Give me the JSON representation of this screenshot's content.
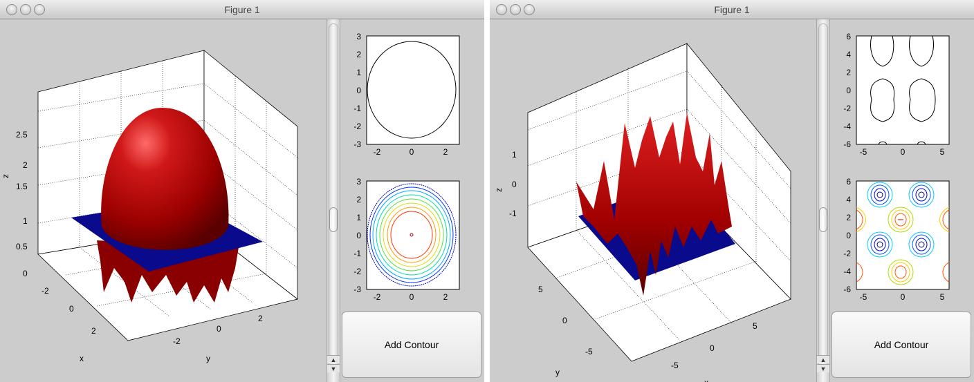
{
  "windows": [
    {
      "title": "Figure 1",
      "button_label": "Add Contour",
      "plot3d": {
        "axis_labels": {
          "x": "x",
          "y": "y",
          "z": "z"
        },
        "z_ticks": [
          "0",
          "0.5",
          "1",
          "1.5",
          "2",
          "2.5"
        ],
        "x_ticks": [
          "-2",
          "0",
          "2"
        ],
        "y_ticks": [
          "-2",
          "0",
          "2"
        ]
      },
      "top_plot": {
        "x_ticks": [
          "-2",
          "0",
          "2"
        ],
        "y_ticks": [
          "3",
          "2",
          "1",
          "0",
          "-1",
          "-2",
          "-3"
        ]
      },
      "bottom_plot": {
        "x_ticks": [
          "-2",
          "0",
          "2"
        ],
        "y_ticks": [
          "3",
          "2",
          "1",
          "0",
          "-1",
          "-2",
          "-3"
        ]
      }
    },
    {
      "title": "Figure 1",
      "button_label": "Add Contour",
      "plot3d": {
        "axis_labels": {
          "x": "x",
          "y": "y",
          "z": "z"
        },
        "z_ticks": [
          "1",
          "0",
          "-1"
        ],
        "x_ticks": [
          "-5",
          "0",
          "5"
        ],
        "y_ticks": [
          "5",
          "0",
          "-5"
        ]
      },
      "top_plot": {
        "x_ticks": [
          "-5",
          "0",
          "5"
        ],
        "y_ticks": [
          "6",
          "4",
          "2",
          "0",
          "-2",
          "-4",
          "-6"
        ]
      },
      "bottom_plot": {
        "x_ticks": [
          "-5",
          "0",
          "5"
        ],
        "y_ticks": [
          "6",
          "4",
          "2",
          "0",
          "-2",
          "-4",
          "-6"
        ]
      }
    }
  ],
  "colors": {
    "surface": "#b30000",
    "plane": "#0a0a8c",
    "background": "#cccccc"
  }
}
